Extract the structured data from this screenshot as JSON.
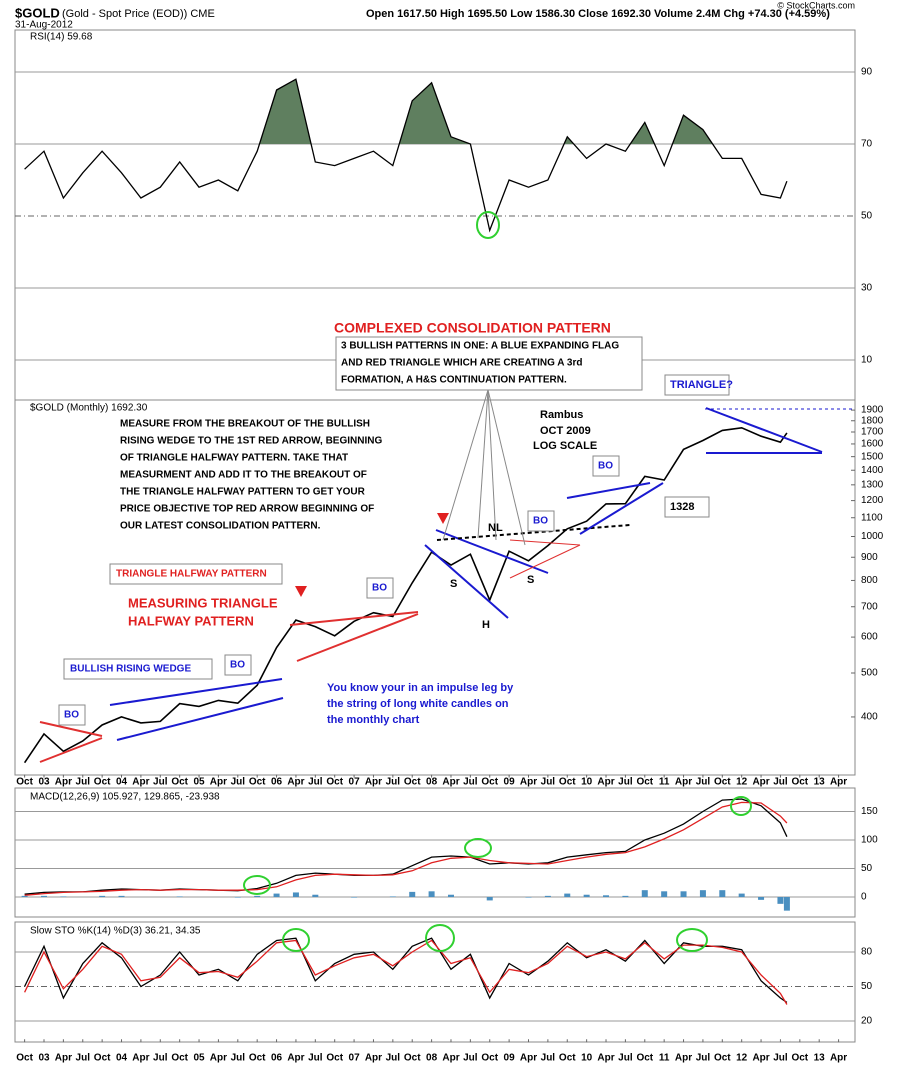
{
  "header": {
    "ticker": "$GOLD",
    "name": "(Gold - Spot Price (EOD)) CME",
    "date": "31-Aug-2012",
    "quote": "Open 1617.50  High 1695.50  Low 1586.30  Close 1692.30  Volume 2.4M  Chg +74.30 (+4.59%)",
    "copyright": "© StockCharts.com"
  },
  "chart_data": [
    {
      "type": "line",
      "title": "RSI(14) 59.68",
      "ylim": [
        0,
        100
      ],
      "yticks": [
        10,
        30,
        50,
        70,
        90
      ],
      "fill_above": 70,
      "fill_color": "#5f7f5f",
      "x": [
        "2002-10",
        "2003-01",
        "2003-04",
        "2003-07",
        "2003-10",
        "2004-01",
        "2004-04",
        "2004-07",
        "2004-10",
        "2005-01",
        "2005-04",
        "2005-07",
        "2005-10",
        "2006-01",
        "2006-04",
        "2006-07",
        "2006-10",
        "2007-01",
        "2007-04",
        "2007-07",
        "2007-10",
        "2008-01",
        "2008-04",
        "2008-07",
        "2008-10",
        "2009-01",
        "2009-04",
        "2009-07",
        "2009-10",
        "2010-01",
        "2010-04",
        "2010-07",
        "2010-10",
        "2011-01",
        "2011-04",
        "2011-07",
        "2011-10",
        "2012-01",
        "2012-04",
        "2012-07",
        "2012-08"
      ],
      "series": [
        {
          "name": "RSI(14)",
          "color": "#000000",
          "values": [
            63,
            68,
            55,
            62,
            68,
            62,
            55,
            58,
            65,
            58,
            60,
            57,
            68,
            85,
            88,
            65,
            64,
            66,
            68,
            64,
            82,
            87,
            72,
            70,
            46,
            60,
            58,
            60,
            72,
            66,
            70,
            68,
            76,
            64,
            78,
            74,
            66,
            66,
            56,
            55,
            59.68
          ]
        }
      ]
    },
    {
      "type": "line",
      "title": "$GOLD (Monthly) 1692.30",
      "log_scale": true,
      "ylim": [
        300,
        2000
      ],
      "yticks": [
        400,
        500,
        600,
        700,
        800,
        900,
        1000,
        1100,
        1200,
        1300,
        1400,
        1500,
        1600,
        1700,
        1800,
        1900
      ],
      "x": [
        "2002-10",
        "2003-01",
        "2003-04",
        "2003-07",
        "2003-10",
        "2004-01",
        "2004-04",
        "2004-07",
        "2004-10",
        "2005-01",
        "2005-04",
        "2005-07",
        "2005-10",
        "2006-01",
        "2006-04",
        "2006-07",
        "2006-10",
        "2007-01",
        "2007-04",
        "2007-07",
        "2007-10",
        "2008-01",
        "2008-04",
        "2008-07",
        "2008-10",
        "2009-01",
        "2009-04",
        "2009-07",
        "2009-10",
        "2010-01",
        "2010-04",
        "2010-07",
        "2010-10",
        "2011-01",
        "2011-04",
        "2011-07",
        "2011-10",
        "2012-01",
        "2012-04",
        "2012-07",
        "2012-08"
      ],
      "series": [
        {
          "name": "$GOLD",
          "color": "#000000",
          "values": [
            317,
            367,
            336,
            354,
            384,
            400,
            388,
            391,
            428,
            422,
            435,
            429,
            470,
            569,
            654,
            633,
            604,
            650,
            679,
            666,
            790,
            924,
            865,
            914,
            724,
            928,
            884,
            955,
            1040,
            1081,
            1180,
            1181,
            1357,
            1332,
            1556,
            1628,
            1714,
            1737,
            1664,
            1614,
            1692.3
          ]
        }
      ],
      "xticks": [
        {
          "value": "2002-10",
          "label": "Oct"
        },
        {
          "value": "2003-01",
          "label": "03"
        },
        {
          "value": "2003-04",
          "label": "Apr"
        },
        {
          "value": "2003-07",
          "label": "Jul"
        },
        {
          "value": "2003-10",
          "label": "Oct"
        },
        {
          "value": "2004-01",
          "label": "04"
        },
        {
          "value": "2004-04",
          "label": "Apr"
        },
        {
          "value": "2004-07",
          "label": "Jul"
        },
        {
          "value": "2004-10",
          "label": "Oct"
        },
        {
          "value": "2005-01",
          "label": "05"
        },
        {
          "value": "2005-04",
          "label": "Apr"
        },
        {
          "value": "2005-07",
          "label": "Jul"
        },
        {
          "value": "2005-10",
          "label": "Oct"
        },
        {
          "value": "2006-01",
          "label": "06"
        },
        {
          "value": "2006-04",
          "label": "Apr"
        },
        {
          "value": "2006-07",
          "label": "Jul"
        },
        {
          "value": "2006-10",
          "label": "Oct"
        },
        {
          "value": "2007-01",
          "label": "07"
        },
        {
          "value": "2007-04",
          "label": "Apr"
        },
        {
          "value": "2007-07",
          "label": "Jul"
        },
        {
          "value": "2007-10",
          "label": "Oct"
        },
        {
          "value": "2008-01",
          "label": "08"
        },
        {
          "value": "2008-04",
          "label": "Apr"
        },
        {
          "value": "2008-07",
          "label": "Jul"
        },
        {
          "value": "2008-10",
          "label": "Oct"
        },
        {
          "value": "2009-01",
          "label": "09"
        },
        {
          "value": "2009-04",
          "label": "Apr"
        },
        {
          "value": "2009-07",
          "label": "Jul"
        },
        {
          "value": "2009-10",
          "label": "Oct"
        },
        {
          "value": "2010-01",
          "label": "10"
        },
        {
          "value": "2010-04",
          "label": "Apr"
        },
        {
          "value": "2010-07",
          "label": "Jul"
        },
        {
          "value": "2010-10",
          "label": "Oct"
        },
        {
          "value": "2011-01",
          "label": "11"
        },
        {
          "value": "2011-04",
          "label": "Apr"
        },
        {
          "value": "2011-07",
          "label": "Jul"
        },
        {
          "value": "2011-10",
          "label": "Oct"
        },
        {
          "value": "2012-01",
          "label": "12"
        },
        {
          "value": "2012-04",
          "label": "Apr"
        },
        {
          "value": "2012-07",
          "label": "Jul"
        },
        {
          "value": "2012-10",
          "label": "Oct"
        },
        {
          "value": "2013-01",
          "label": "13"
        },
        {
          "value": "2013-04",
          "label": "Apr"
        }
      ],
      "annotations": [
        "COMPLEXED CONSOLIDATION PATTERN",
        "3 BULLISH PATTERNS IN ONE:  A BLUE EXPANDING FLAG",
        "AND RED TRIANGLE WHICH ARE CREATING A 3rd",
        "FORMATION, A H&S CONTINUATION PATTERN.",
        "Rambus",
        "OCT 2009",
        "LOG SCALE",
        "TRIANGLE?",
        "MEASURE FROM THE BREAKOUT OF THE BULLISH",
        "RISING WEDGE TO THE 1ST RED ARROW, BEGINNING",
        "OF TRIANGLE HALFWAY PATTERN. TAKE THAT",
        "MEASURMENT AND ADD IT TO THE BREAKOUT OF",
        "THE TRIANGLE HALFWAY PATTERN TO GET YOUR",
        "PRICE OBJECTIVE TOP RED ARROW BEGINNING OF",
        "OUR LATEST CONSOLIDATION PATTERN.",
        "TRIANGLE HALFWAY PATTERN",
        "MEASURING TRIANGLE",
        "HALFWAY PATTERN",
        "BULLISH RISING WEDGE",
        "You know your in an impulse leg by",
        "the string of long white candles on",
        "the monthly chart",
        "NL",
        "S",
        "S",
        "H",
        "1328",
        "BO",
        "BO",
        "BO",
        "BO",
        "BO"
      ]
    },
    {
      "type": "line",
      "title": "MACD(12,26,9) 105.927, 129.865, -23.938",
      "ylim": [
        -30,
        185
      ],
      "yticks": [
        0,
        50,
        100,
        150
      ],
      "x": [
        "2002-10",
        "2003-01",
        "2003-04",
        "2003-07",
        "2003-10",
        "2004-01",
        "2004-04",
        "2004-07",
        "2004-10",
        "2005-01",
        "2005-04",
        "2005-07",
        "2005-10",
        "2006-01",
        "2006-04",
        "2006-07",
        "2006-10",
        "2007-01",
        "2007-04",
        "2007-07",
        "2007-10",
        "2008-01",
        "2008-04",
        "2008-07",
        "2008-10",
        "2009-01",
        "2009-04",
        "2009-07",
        "2009-10",
        "2010-01",
        "2010-04",
        "2010-07",
        "2010-10",
        "2011-01",
        "2011-04",
        "2011-07",
        "2011-10",
        "2012-01",
        "2012-04",
        "2012-07",
        "2012-08"
      ],
      "series": [
        {
          "name": "MACD",
          "color": "#000000",
          "values": [
            5,
            8,
            9,
            9,
            12,
            14,
            13,
            12,
            14,
            13,
            12,
            11,
            15,
            24,
            38,
            42,
            40,
            38,
            38,
            40,
            55,
            70,
            72,
            70,
            58,
            60,
            58,
            60,
            70,
            74,
            78,
            80,
            100,
            112,
            128,
            150,
            170,
            172,
            160,
            130,
            105.927
          ]
        },
        {
          "name": "Signal",
          "color": "#e02020",
          "values": [
            3,
            6,
            8,
            9,
            10,
            12,
            13,
            12,
            13,
            13,
            12,
            12,
            13,
            18,
            30,
            38,
            40,
            39,
            38,
            39,
            46,
            60,
            68,
            70,
            64,
            60,
            59,
            58,
            64,
            70,
            75,
            78,
            88,
            102,
            118,
            138,
            158,
            166,
            165,
            142,
            129.865
          ]
        },
        {
          "name": "Histogram",
          "type": "bar",
          "color": "#4a8fc0",
          "values": [
            2,
            2,
            1,
            0,
            2,
            2,
            0,
            0,
            1,
            0,
            0,
            -1,
            2,
            6,
            8,
            4,
            0,
            -1,
            0,
            1,
            9,
            10,
            4,
            0,
            -6,
            0,
            -1,
            2,
            6,
            4,
            3,
            2,
            12,
            10,
            10,
            12,
            12,
            6,
            -5,
            -12,
            -23.938
          ]
        }
      ]
    },
    {
      "type": "line",
      "title": "Slow STO %K(14) %D(3) 36.21, 34.35",
      "ylim": [
        5,
        100
      ],
      "yticks": [
        20,
        50,
        80
      ],
      "x": [
        "2002-10",
        "2003-01",
        "2003-04",
        "2003-07",
        "2003-10",
        "2004-01",
        "2004-04",
        "2004-07",
        "2004-10",
        "2005-01",
        "2005-04",
        "2005-07",
        "2005-10",
        "2006-01",
        "2006-04",
        "2006-07",
        "2006-10",
        "2007-01",
        "2007-04",
        "2007-07",
        "2007-10",
        "2008-01",
        "2008-04",
        "2008-07",
        "2008-10",
        "2009-01",
        "2009-04",
        "2009-07",
        "2009-10",
        "2010-01",
        "2010-04",
        "2010-07",
        "2010-10",
        "2011-01",
        "2011-04",
        "2011-07",
        "2011-10",
        "2012-01",
        "2012-04",
        "2012-07",
        "2012-08"
      ],
      "series": [
        {
          "name": "%K",
          "color": "#000000",
          "values": [
            50,
            85,
            40,
            70,
            88,
            75,
            50,
            60,
            80,
            60,
            65,
            55,
            78,
            90,
            92,
            55,
            70,
            78,
            80,
            65,
            85,
            92,
            65,
            78,
            40,
            70,
            60,
            72,
            88,
            75,
            82,
            72,
            90,
            70,
            88,
            85,
            85,
            82,
            55,
            40,
            36.21
          ]
        },
        {
          "name": "%D",
          "color": "#e02020",
          "values": [
            45,
            80,
            48,
            65,
            85,
            78,
            55,
            58,
            75,
            62,
            63,
            58,
            72,
            88,
            90,
            60,
            68,
            75,
            78,
            68,
            80,
            90,
            70,
            75,
            45,
            65,
            62,
            70,
            85,
            76,
            80,
            74,
            88,
            74,
            86,
            86,
            84,
            80,
            60,
            44,
            34.35
          ]
        }
      ],
      "xticks": [
        {
          "value": "2002-10",
          "label": "Oct"
        },
        {
          "value": "2003-01",
          "label": "03"
        },
        {
          "value": "2003-04",
          "label": "Apr"
        },
        {
          "value": "2003-07",
          "label": "Jul"
        },
        {
          "value": "2003-10",
          "label": "Oct"
        },
        {
          "value": "2004-01",
          "label": "04"
        },
        {
          "value": "2004-04",
          "label": "Apr"
        },
        {
          "value": "2004-07",
          "label": "Jul"
        },
        {
          "value": "2004-10",
          "label": "Oct"
        },
        {
          "value": "2005-01",
          "label": "05"
        },
        {
          "value": "2005-04",
          "label": "Apr"
        },
        {
          "value": "2005-07",
          "label": "Jul"
        },
        {
          "value": "2005-10",
          "label": "Oct"
        },
        {
          "value": "2006-01",
          "label": "06"
        },
        {
          "value": "2006-04",
          "label": "Apr"
        },
        {
          "value": "2006-07",
          "label": "Jul"
        },
        {
          "value": "2006-10",
          "label": "Oct"
        },
        {
          "value": "2007-01",
          "label": "07"
        },
        {
          "value": "2007-04",
          "label": "Apr"
        },
        {
          "value": "2007-07",
          "label": "Jul"
        },
        {
          "value": "2007-10",
          "label": "Oct"
        },
        {
          "value": "2008-01",
          "label": "08"
        },
        {
          "value": "2008-04",
          "label": "Apr"
        },
        {
          "value": "2008-07",
          "label": "Jul"
        },
        {
          "value": "2008-10",
          "label": "Oct"
        },
        {
          "value": "2009-01",
          "label": "09"
        },
        {
          "value": "2009-04",
          "label": "Apr"
        },
        {
          "value": "2009-07",
          "label": "Jul"
        },
        {
          "value": "2009-10",
          "label": "Oct"
        },
        {
          "value": "2010-01",
          "label": "10"
        },
        {
          "value": "2010-04",
          "label": "Apr"
        },
        {
          "value": "2010-07",
          "label": "Jul"
        },
        {
          "value": "2010-10",
          "label": "Oct"
        },
        {
          "value": "2011-01",
          "label": "11"
        },
        {
          "value": "2011-04",
          "label": "Apr"
        },
        {
          "value": "2011-07",
          "label": "Jul"
        },
        {
          "value": "2011-10",
          "label": "Oct"
        },
        {
          "value": "2012-01",
          "label": "12"
        },
        {
          "value": "2012-04",
          "label": "Apr"
        },
        {
          "value": "2012-07",
          "label": "Jul"
        },
        {
          "value": "2012-10",
          "label": "Oct"
        },
        {
          "value": "2013-01",
          "label": "13"
        },
        {
          "value": "2013-04",
          "label": "Apr"
        }
      ]
    }
  ]
}
